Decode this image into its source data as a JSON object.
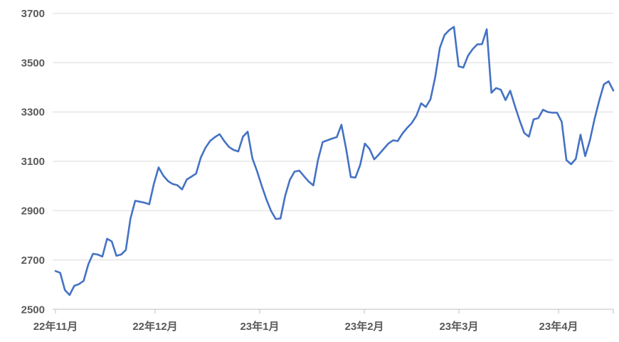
{
  "chart_data": {
    "type": "line",
    "title": "",
    "legend": null,
    "grid": "horizontal-only",
    "line_color": "#4472C4",
    "grid_color": "#DBDBDB",
    "axis_color": "#BFBFBF",
    "label_color": "#595959",
    "background_color": "#FFFFFF",
    "ylim": [
      2500,
      3700
    ],
    "y_ticks": [
      2500,
      2700,
      2900,
      3100,
      3300,
      3500,
      3700
    ],
    "x_ticks": [
      {
        "label": "22年11月",
        "index": 0
      },
      {
        "label": "22年12月",
        "index": 21.25
      },
      {
        "label": "23年1月",
        "index": 43.56
      },
      {
        "label": "23年2月",
        "index": 65.88
      },
      {
        "label": "23年3月",
        "index": 86.06
      },
      {
        "label": "23年4月",
        "index": 107.32
      }
    ],
    "values": [
      2655,
      2648,
      2578,
      2558,
      2595,
      2602,
      2615,
      2682,
      2725,
      2722,
      2714,
      2786,
      2775,
      2717,
      2722,
      2740,
      2868,
      2940,
      2936,
      2932,
      2926,
      3010,
      3075,
      3042,
      3020,
      3008,
      3003,
      2986,
      3026,
      3038,
      3050,
      3115,
      3155,
      3183,
      3198,
      3210,
      3182,
      3158,
      3146,
      3140,
      3200,
      3220,
      3112,
      3060,
      3000,
      2945,
      2898,
      2866,
      2868,
      2960,
      3025,
      3058,
      3062,
      3040,
      3018,
      3002,
      3105,
      3178,
      3185,
      3192,
      3198,
      3248,
      3150,
      3036,
      3034,
      3085,
      3172,
      3150,
      3108,
      3128,
      3150,
      3172,
      3185,
      3182,
      3212,
      3235,
      3255,
      3285,
      3335,
      3320,
      3352,
      3440,
      3560,
      3612,
      3632,
      3645,
      3485,
      3480,
      3528,
      3555,
      3574,
      3575,
      3635,
      3378,
      3397,
      3390,
      3348,
      3386,
      3325,
      3267,
      3215,
      3200,
      3270,
      3275,
      3309,
      3300,
      3297,
      3297,
      3260,
      3105,
      3088,
      3110,
      3208,
      3121,
      3185,
      3271,
      3346,
      3412,
      3424,
      3387
    ]
  }
}
